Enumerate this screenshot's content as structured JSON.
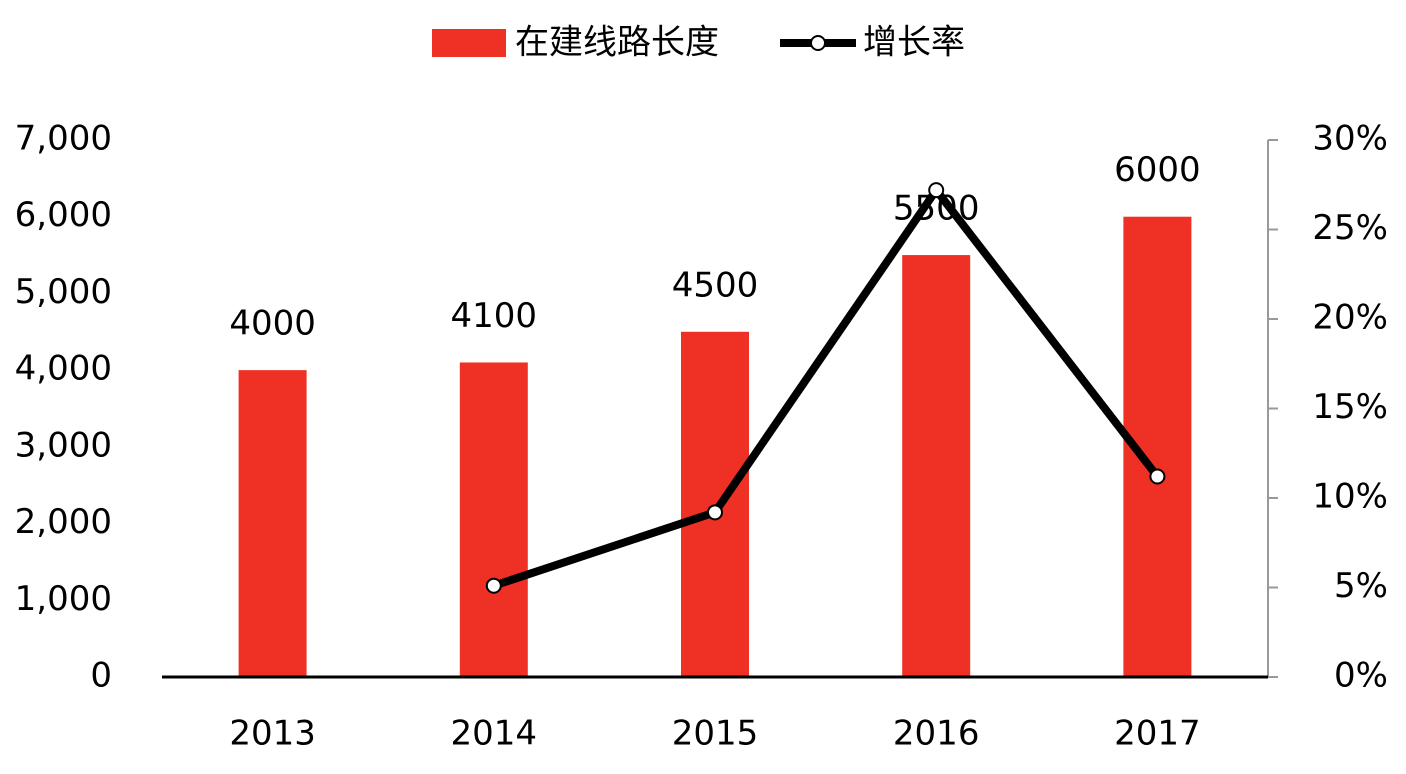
{
  "chart_data": {
    "type": "bar",
    "categories": [
      "2013",
      "2014",
      "2015",
      "2016",
      "2017"
    ],
    "series": [
      {
        "name": "在建线路长度",
        "type": "bar",
        "color": "#ee3124",
        "values": [
          4000,
          4100,
          4500,
          5500,
          6000
        ]
      },
      {
        "name": "增长率",
        "type": "line",
        "axis": "y2",
        "color": "#000000",
        "values": [
          null,
          5.1,
          9.2,
          27.2,
          11.2
        ]
      }
    ],
    "ylim": [
      0,
      7000
    ],
    "yticks": [
      0,
      {
        "value": 1000,
        "label": "1,000"
      },
      {
        "value": 2000,
        "label": "2,000"
      },
      {
        "value": 3000,
        "label": "3,000"
      },
      {
        "value": 4000,
        "label": "4,000"
      },
      {
        "value": 5000,
        "label": "5,000"
      },
      {
        "value": 6000,
        "label": "6,000"
      },
      {
        "value": 7000,
        "label": "7,000"
      }
    ],
    "y2lim": [
      0,
      30
    ],
    "y2ticks": [
      {
        "value": 0,
        "label": "0%"
      },
      {
        "value": 5,
        "label": "5%"
      },
      {
        "value": 10,
        "label": "10%"
      },
      {
        "value": 15,
        "label": "15%"
      },
      {
        "value": 20,
        "label": "20%"
      },
      {
        "value": 25,
        "label": "25%"
      },
      {
        "value": 30,
        "label": "30%"
      }
    ],
    "legend": "top"
  }
}
